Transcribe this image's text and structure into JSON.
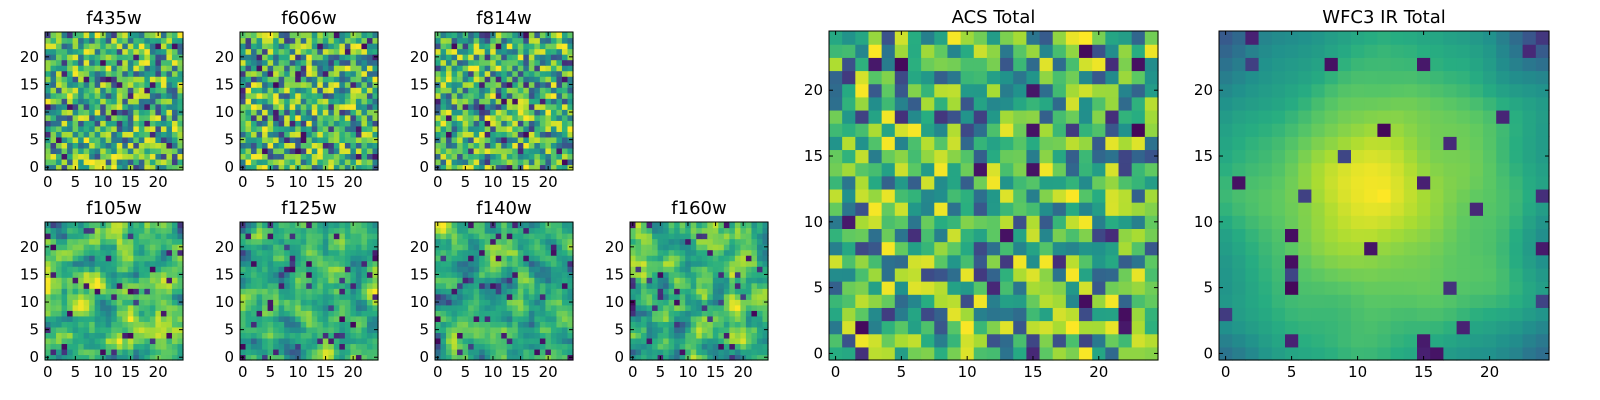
{
  "chart_data": {
    "type": "heatmap",
    "colormap": "viridis",
    "grid": false,
    "panels": [
      {
        "id": "f435w",
        "title": "f435w",
        "x_ticks": [
          "0",
          "5",
          "10",
          "15",
          "20"
        ],
        "y_ticks": [
          "0",
          "5",
          "10",
          "15",
          "20"
        ],
        "x_range": [
          -0.5,
          24.5
        ],
        "y_range": [
          -0.5,
          24.5
        ],
        "pattern": "noise",
        "seed": 11
      },
      {
        "id": "f606w",
        "title": "f606w",
        "x_ticks": [
          "0",
          "5",
          "10",
          "15",
          "20"
        ],
        "y_ticks": [
          "0",
          "5",
          "10",
          "15",
          "20"
        ],
        "x_range": [
          -0.5,
          24.5
        ],
        "y_range": [
          -0.5,
          24.5
        ],
        "pattern": "noise",
        "seed": 23
      },
      {
        "id": "f814w",
        "title": "f814w",
        "x_ticks": [
          "0",
          "5",
          "10",
          "15",
          "20"
        ],
        "y_ticks": [
          "0",
          "5",
          "10",
          "15",
          "20"
        ],
        "x_range": [
          -0.5,
          24.5
        ],
        "y_range": [
          -0.5,
          24.5
        ],
        "pattern": "noise",
        "seed": 37
      },
      {
        "id": "f105w",
        "title": "f105w",
        "x_ticks": [
          "0",
          "5",
          "10",
          "15",
          "20"
        ],
        "y_ticks": [
          "0",
          "5",
          "10",
          "15",
          "20"
        ],
        "x_range": [
          -0.5,
          24.5
        ],
        "y_range": [
          -0.5,
          24.5
        ],
        "pattern": "smooth",
        "seed": 41
      },
      {
        "id": "f125w",
        "title": "f125w",
        "x_ticks": [
          "0",
          "5",
          "10",
          "15",
          "20"
        ],
        "y_ticks": [
          "0",
          "5",
          "10",
          "15",
          "20"
        ],
        "x_range": [
          -0.5,
          24.5
        ],
        "y_range": [
          -0.5,
          24.5
        ],
        "pattern": "smooth",
        "seed": 53
      },
      {
        "id": "f140w",
        "title": "f140w",
        "x_ticks": [
          "0",
          "5",
          "10",
          "15",
          "20"
        ],
        "y_ticks": [
          "0",
          "5",
          "10",
          "15",
          "20"
        ],
        "x_range": [
          -0.5,
          24.5
        ],
        "y_range": [
          -0.5,
          24.5
        ],
        "pattern": "smooth",
        "seed": 67
      },
      {
        "id": "f160w",
        "title": "f160w",
        "x_ticks": [
          "0",
          "5",
          "10",
          "15",
          "20"
        ],
        "y_ticks": [
          "0",
          "5",
          "10",
          "15",
          "20"
        ],
        "x_range": [
          -0.5,
          24.5
        ],
        "y_range": [
          -0.5,
          24.5
        ],
        "pattern": "smooth",
        "seed": 79
      },
      {
        "id": "acs",
        "title": "ACS Total",
        "x_ticks": [
          "0",
          "5",
          "10",
          "15",
          "20"
        ],
        "y_ticks": [
          "0",
          "5",
          "10",
          "15",
          "20"
        ],
        "x_range": [
          -0.5,
          24.5
        ],
        "y_range": [
          -0.5,
          24.5
        ],
        "pattern": "noise",
        "seed": 97
      },
      {
        "id": "wfc3",
        "title": "WFC3 IR Total",
        "x_ticks": [
          "0",
          "5",
          "10",
          "15",
          "20"
        ],
        "y_ticks": [
          "0",
          "5",
          "10",
          "15",
          "20"
        ],
        "x_range": [
          -0.5,
          24.5
        ],
        "y_range": [
          -0.5,
          24.5
        ],
        "pattern": "blob",
        "seed": 101
      }
    ]
  }
}
